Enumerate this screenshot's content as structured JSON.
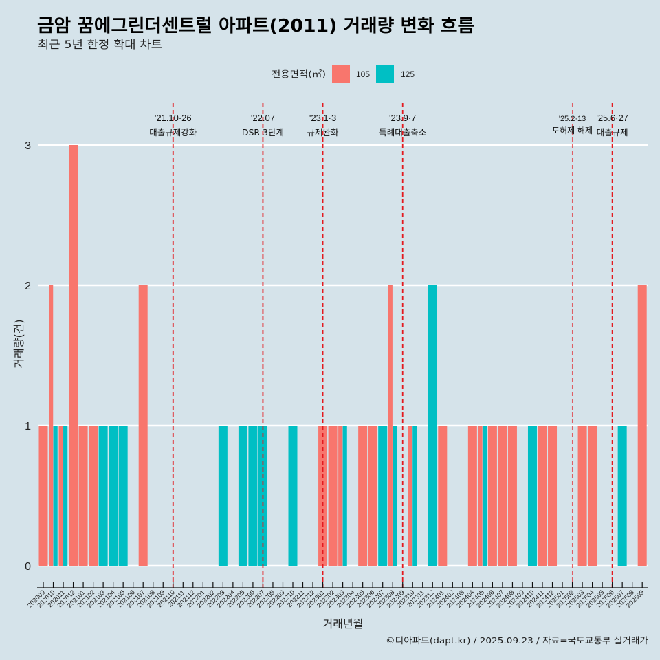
{
  "colors": {
    "background": "#d5e3ea",
    "grid": "#ffffff",
    "axis": "#111111",
    "vline": "#e3191f"
  },
  "chart_data": {
    "type": "bar",
    "title": "금암 꿈에그린더센트럴 아파트(2011) 거래량 변화 흐름",
    "subtitle": "최근 5년 한정 확대 차트",
    "xlabel": "거래년월",
    "ylabel": "거래량(건)",
    "ylim": [
      0,
      3
    ],
    "yticks": [
      "0",
      "1",
      "2",
      "3"
    ],
    "grid": "horizontal-major",
    "legend": {
      "title": "전용면적(㎡)",
      "position": "top",
      "entries": [
        "105",
        "125"
      ]
    },
    "categories": [
      "202009",
      "202010",
      "202011",
      "202012",
      "202101",
      "202102",
      "202103",
      "202104",
      "202105",
      "202106",
      "202107",
      "202108",
      "202109",
      "202110",
      "202111",
      "202112",
      "202201",
      "202202",
      "202203",
      "202204",
      "202205",
      "202206",
      "202207",
      "202208",
      "202209",
      "202210",
      "202211",
      "202212",
      "202301",
      "202302",
      "202303",
      "202304",
      "202305",
      "202306",
      "202307",
      "202308",
      "202309",
      "202310",
      "202311",
      "202312",
      "202401",
      "202402",
      "202403",
      "202404",
      "202405",
      "202406",
      "202407",
      "202408",
      "202409",
      "202410",
      "202411",
      "202412",
      "202501",
      "202502",
      "202503",
      "202504",
      "202505",
      "202506",
      "202507",
      "202508",
      "202509"
    ],
    "series": [
      {
        "name": "105",
        "color": "#F8766D",
        "values": [
          1,
          2,
          1,
          3,
          1,
          1,
          0,
          0,
          0,
          0,
          2,
          0,
          0,
          0,
          0,
          0,
          0,
          0,
          0,
          0,
          0,
          0,
          0,
          0,
          0,
          0,
          0,
          0,
          1,
          1,
          1,
          0,
          1,
          1,
          0,
          2,
          0,
          1,
          0,
          0,
          1,
          0,
          0,
          1,
          1,
          1,
          1,
          1,
          0,
          0,
          1,
          1,
          0,
          0,
          1,
          1,
          0,
          0,
          0,
          0,
          2
        ]
      },
      {
        "name": "125",
        "color": "#00BFC4",
        "values": [
          0,
          1,
          1,
          0,
          0,
          0,
          1,
          1,
          1,
          0,
          0,
          0,
          0,
          0,
          0,
          0,
          0,
          0,
          1,
          0,
          1,
          1,
          1,
          0,
          0,
          1,
          0,
          0,
          0,
          0,
          1,
          0,
          0,
          0,
          1,
          1,
          0,
          1,
          0,
          2,
          0,
          0,
          0,
          0,
          1,
          0,
          0,
          0,
          0,
          1,
          0,
          0,
          0,
          0,
          0,
          0,
          0,
          0,
          1,
          0,
          0
        ]
      }
    ],
    "annotations": [
      {
        "x": "202110",
        "date": "'21.10·26",
        "label": "대출규제강화",
        "weight": "major"
      },
      {
        "x": "202207",
        "date": "'22.07",
        "label": "DSR 3단계",
        "weight": "major"
      },
      {
        "x": "202301",
        "date": "'23.1·3",
        "label": "규제완화",
        "weight": "major"
      },
      {
        "x": "202309",
        "date": "'23.9·7",
        "label": "특례대출축소",
        "weight": "major"
      },
      {
        "x": "202502",
        "date": "'25.2·13",
        "label": "토허제 해제",
        "weight": "minor"
      },
      {
        "x": "202506",
        "date": "'25.6·27",
        "label": "대출규제",
        "weight": "major"
      }
    ],
    "caption": "©디아파트(dapt.kr) / 2025.09.23 / 자료=국토교통부 실거래가"
  }
}
